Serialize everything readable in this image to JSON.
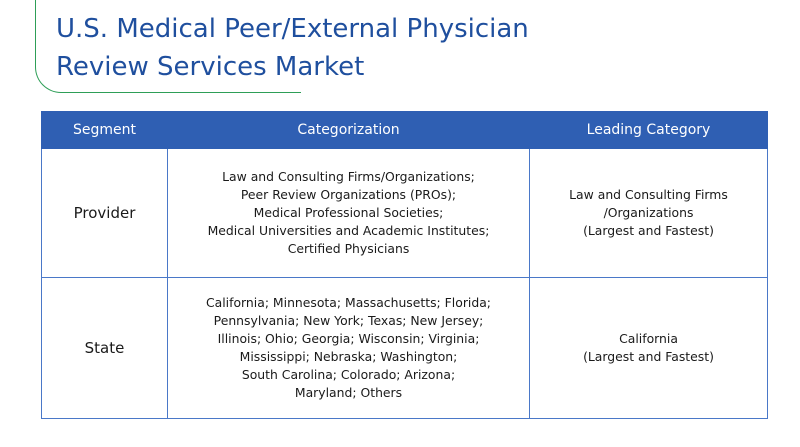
{
  "title": {
    "line1": "U.S. Medical Peer/External Physician",
    "line2": "Review Services Market"
  },
  "table": {
    "headers": {
      "segment": "Segment",
      "categorization": "Categorization",
      "leading_category": "Leading Category"
    },
    "rows": [
      {
        "segment": "Provider",
        "categorization": [
          "Law and Consulting Firms/Organizations;",
          "Peer Review Organizations (PROs);",
          "Medical Professional Societies;",
          "Medical Universities and Academic Institutes;",
          "Certified Physicians"
        ],
        "leading_category": [
          "Law and Consulting Firms",
          "/Organizations",
          "(Largest and Fastest)"
        ]
      },
      {
        "segment": "State",
        "categorization": [
          "California; Minnesota; Massachusetts; Florida;",
          "Pennsylvania; New York; Texas; New Jersey;",
          "Illinois; Ohio; Georgia; Wisconsin; Virginia;",
          "Mississippi; Nebraska; Washington;",
          "South Carolina; Colorado; Arizona;",
          "Maryland; Others"
        ],
        "leading_category": [
          "California",
          "(Largest and Fastest)"
        ]
      }
    ]
  },
  "colors": {
    "title_text": "#1f4f9e",
    "accent_line": "#2e9e57",
    "header_bg": "#2f5fb3",
    "header_text": "#ffffff",
    "cell_border": "#4a78c8"
  }
}
